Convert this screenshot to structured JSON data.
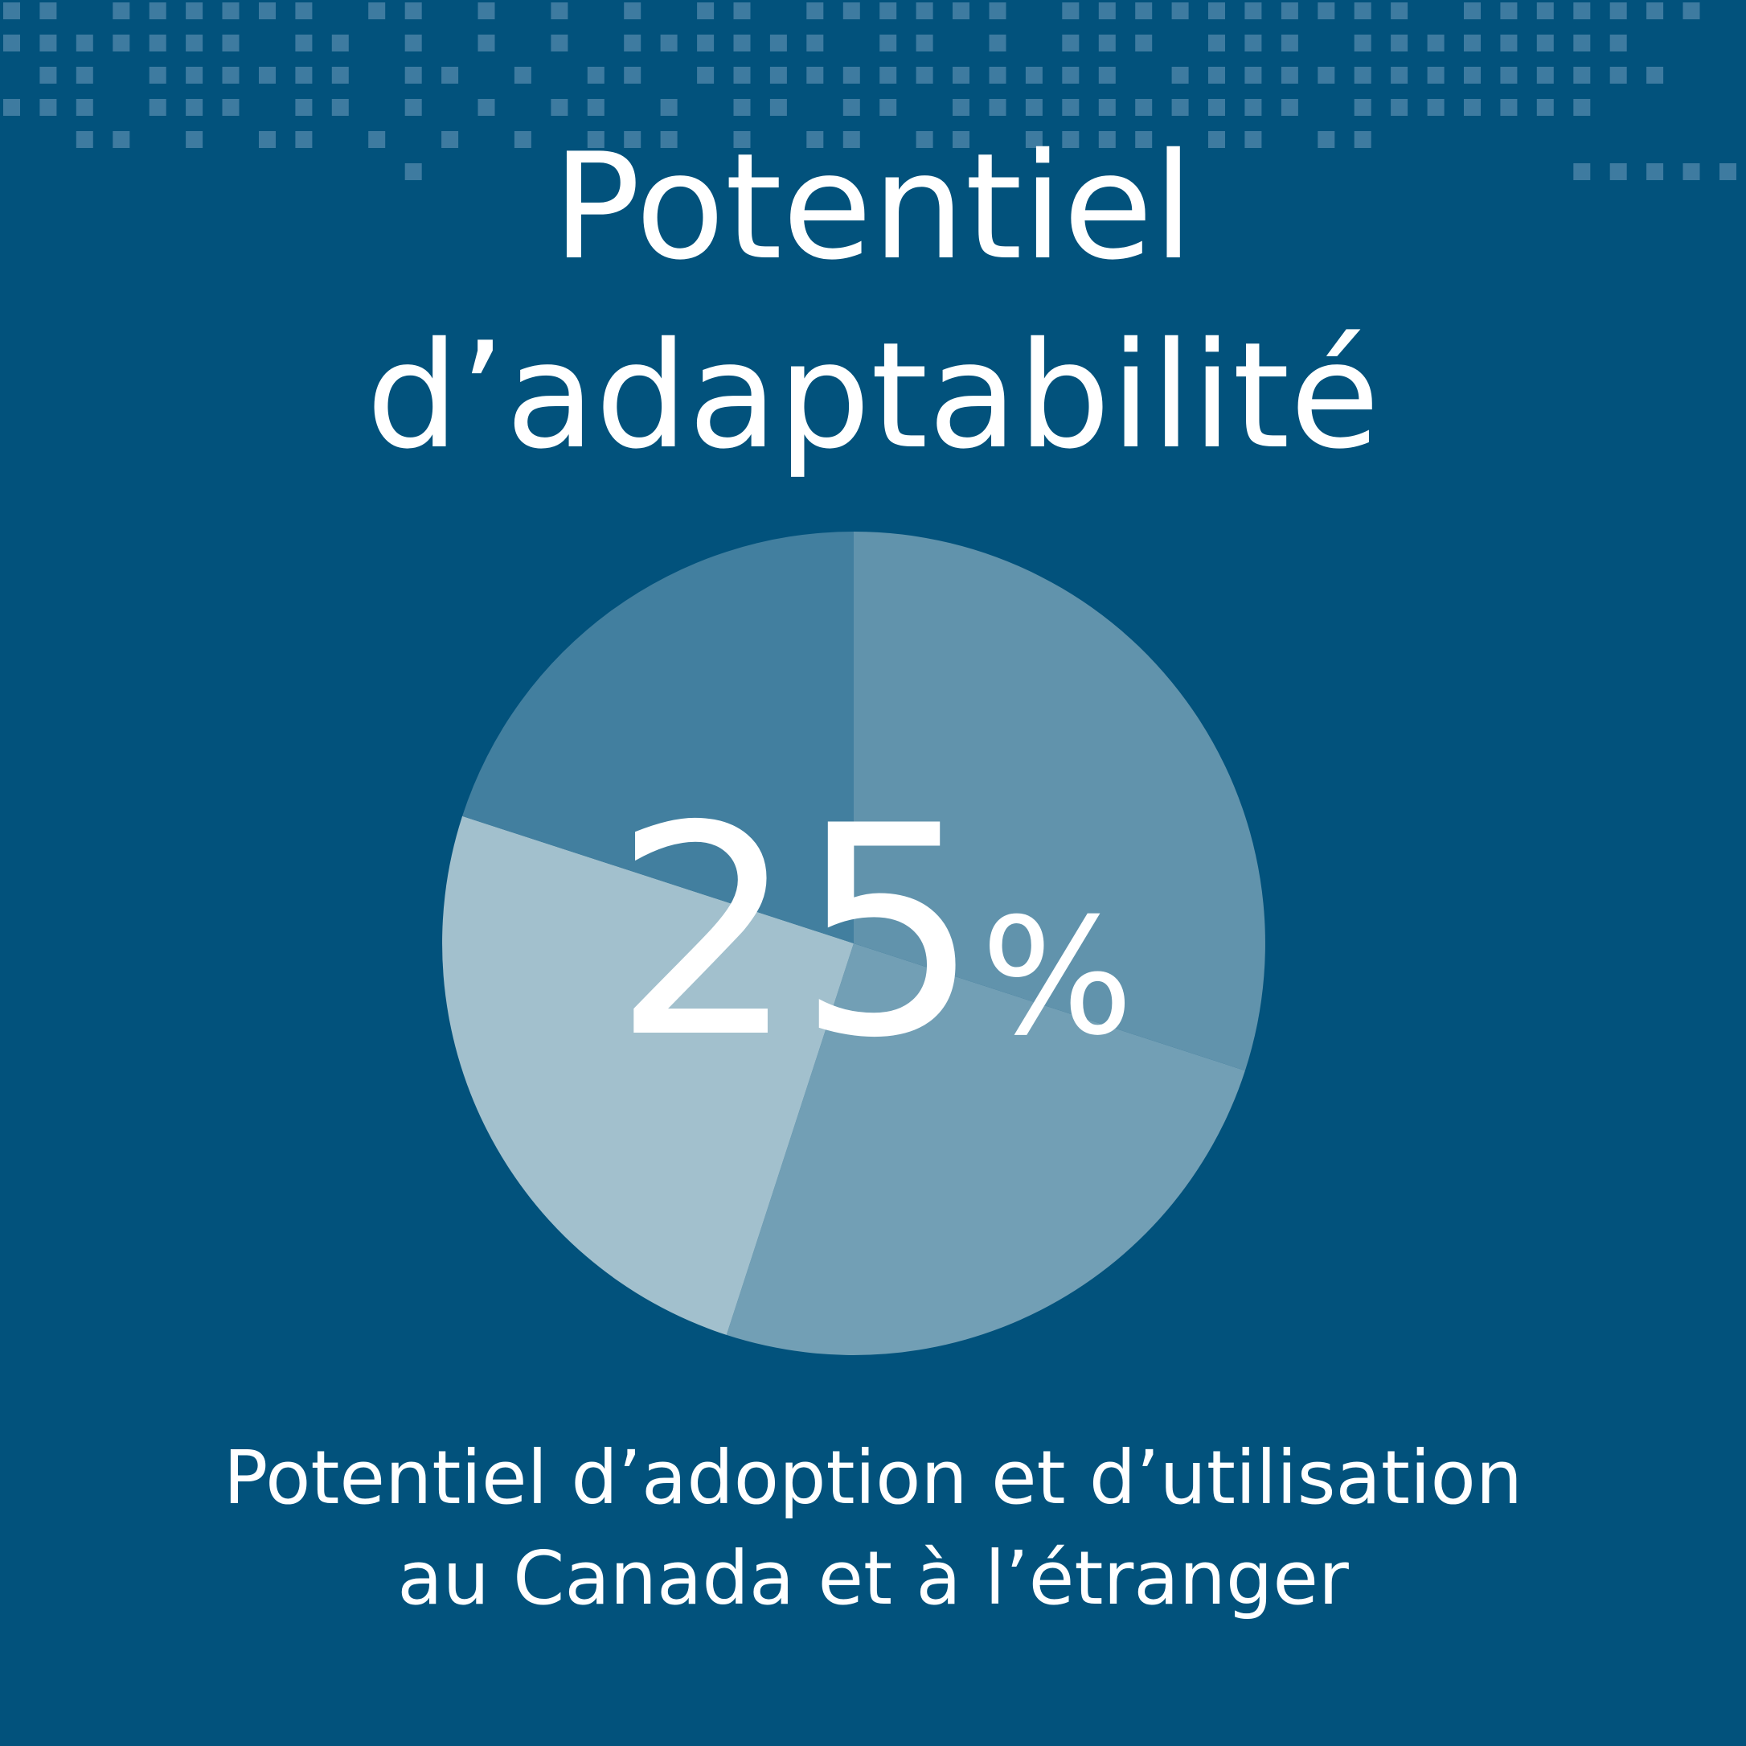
{
  "title": {
    "line1": "Potentiel",
    "line2": "d’adaptabilité"
  },
  "value": {
    "number": "25",
    "unit": "%"
  },
  "caption": {
    "line1": "Potentiel d’adoption et d’utilisation",
    "line2": "au Canada et à l’étranger"
  },
  "colors": {
    "background": "#02527c",
    "dots": "#3e7ba0",
    "text": "#ffffff"
  },
  "chart_data": {
    "type": "pie",
    "highlight_value": 25,
    "unit": "%",
    "slices": [
      {
        "value": 30,
        "color": "#6193ac"
      },
      {
        "value": 25,
        "color": "#729fb5"
      },
      {
        "value": 25,
        "color": "#a2c0cd"
      },
      {
        "value": 20,
        "color": "#427f9f"
      }
    ]
  }
}
